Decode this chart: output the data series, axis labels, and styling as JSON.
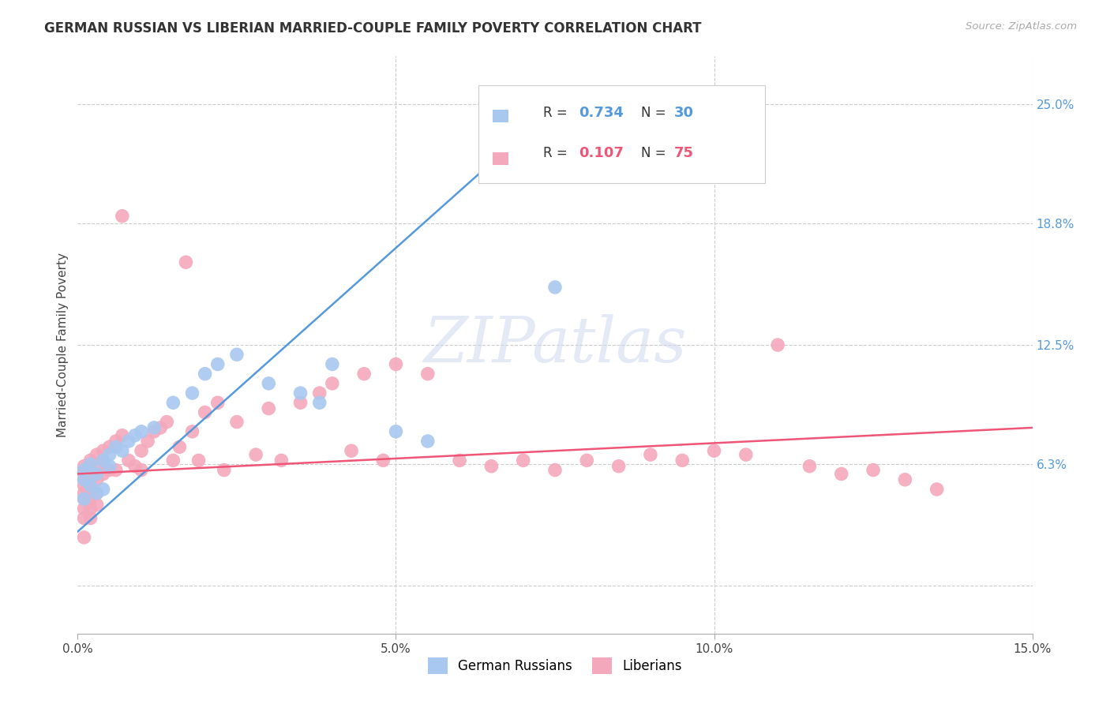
{
  "title": "GERMAN RUSSIAN VS LIBERIAN MARRIED-COUPLE FAMILY POVERTY CORRELATION CHART",
  "source": "Source: ZipAtlas.com",
  "ylabel": "Married-Couple Family Poverty",
  "xlim": [
    0.0,
    0.15
  ],
  "ylim": [
    -0.025,
    0.275
  ],
  "ytick_vals": [
    0.0,
    0.063,
    0.125,
    0.188,
    0.25
  ],
  "ytick_labels": [
    "6.3%",
    "12.5%",
    "18.8%",
    "25.0%"
  ],
  "xtick_vals": [
    0.0,
    0.05,
    0.1,
    0.15
  ],
  "xtick_labels": [
    "0.0%",
    "5.0%",
    "10.0%",
    "15.0%"
  ],
  "watermark": "ZIPatlas",
  "german_russian_color": "#a8c8f0",
  "liberian_color": "#f4a8bc",
  "german_russian_line_color": "#5599dd",
  "liberian_line_color": "#ee5577",
  "legend_r1": "0.734",
  "legend_n1": "30",
  "legend_r2": "0.107",
  "legend_n2": "75",
  "german_russian_label": "German Russians",
  "liberian_label": "Liberians",
  "gr_line_x0": 0.0,
  "gr_line_y0": 0.028,
  "gr_line_x1": 0.078,
  "gr_line_y1": 0.258,
  "lib_line_x0": 0.0,
  "lib_line_y0": 0.058,
  "lib_line_x1": 0.15,
  "lib_line_y1": 0.082,
  "grid_color": "#cccccc",
  "background_color": "#ffffff",
  "german_russian_x": [
    0.001,
    0.001,
    0.001,
    0.002,
    0.002,
    0.003,
    0.003,
    0.004,
    0.004,
    0.005,
    0.005,
    0.006,
    0.007,
    0.008,
    0.009,
    0.01,
    0.012,
    0.015,
    0.018,
    0.02,
    0.022,
    0.025,
    0.03,
    0.035,
    0.038,
    0.04,
    0.05,
    0.055,
    0.075,
    0.075
  ],
  "german_russian_y": [
    0.06,
    0.055,
    0.045,
    0.063,
    0.052,
    0.058,
    0.048,
    0.065,
    0.05,
    0.068,
    0.062,
    0.072,
    0.07,
    0.075,
    0.078,
    0.08,
    0.082,
    0.095,
    0.1,
    0.11,
    0.115,
    0.12,
    0.105,
    0.1,
    0.095,
    0.115,
    0.08,
    0.075,
    0.155,
    0.25
  ],
  "liberian_x": [
    0.001,
    0.001,
    0.001,
    0.001,
    0.001,
    0.001,
    0.001,
    0.001,
    0.001,
    0.001,
    0.002,
    0.002,
    0.002,
    0.002,
    0.002,
    0.002,
    0.002,
    0.003,
    0.003,
    0.003,
    0.003,
    0.003,
    0.004,
    0.004,
    0.004,
    0.005,
    0.005,
    0.006,
    0.006,
    0.007,
    0.007,
    0.008,
    0.009,
    0.01,
    0.01,
    0.011,
    0.012,
    0.013,
    0.014,
    0.015,
    0.016,
    0.017,
    0.018,
    0.019,
    0.02,
    0.022,
    0.023,
    0.025,
    0.028,
    0.03,
    0.032,
    0.035,
    0.038,
    0.04,
    0.043,
    0.045,
    0.048,
    0.05,
    0.055,
    0.06,
    0.065,
    0.07,
    0.075,
    0.08,
    0.085,
    0.09,
    0.095,
    0.1,
    0.105,
    0.11,
    0.115,
    0.12,
    0.125,
    0.13,
    0.135
  ],
  "liberian_y": [
    0.062,
    0.06,
    0.058,
    0.055,
    0.052,
    0.048,
    0.045,
    0.04,
    0.035,
    0.025,
    0.065,
    0.06,
    0.055,
    0.05,
    0.045,
    0.04,
    0.035,
    0.068,
    0.062,
    0.055,
    0.048,
    0.042,
    0.07,
    0.065,
    0.058,
    0.072,
    0.06,
    0.075,
    0.06,
    0.078,
    0.192,
    0.065,
    0.062,
    0.07,
    0.06,
    0.075,
    0.08,
    0.082,
    0.085,
    0.065,
    0.072,
    0.168,
    0.08,
    0.065,
    0.09,
    0.095,
    0.06,
    0.085,
    0.068,
    0.092,
    0.065,
    0.095,
    0.1,
    0.105,
    0.07,
    0.11,
    0.065,
    0.115,
    0.11,
    0.065,
    0.062,
    0.065,
    0.06,
    0.065,
    0.062,
    0.068,
    0.065,
    0.07,
    0.068,
    0.125,
    0.062,
    0.058,
    0.06,
    0.055,
    0.05
  ]
}
